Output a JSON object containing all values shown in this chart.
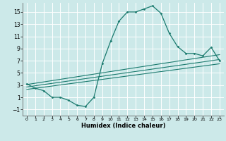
{
  "xlabel": "Humidex (Indice chaleur)",
  "bg_color": "#cce9e9",
  "grid_color": "#ffffff",
  "line_color": "#1a7a6e",
  "xlim": [
    -0.5,
    23.5
  ],
  "ylim": [
    -2.0,
    16.5
  ],
  "xticks": [
    0,
    1,
    2,
    3,
    4,
    5,
    6,
    7,
    8,
    9,
    10,
    11,
    12,
    13,
    14,
    15,
    16,
    17,
    18,
    19,
    20,
    21,
    22,
    23
  ],
  "yticks": [
    -1,
    1,
    3,
    5,
    7,
    9,
    11,
    13,
    15
  ],
  "curve1_x": [
    0,
    1,
    2,
    3,
    4,
    5,
    6,
    7,
    8,
    9,
    10,
    11,
    12,
    13,
    14,
    15,
    16,
    17,
    18,
    19,
    20,
    21,
    22,
    23
  ],
  "curve1_y": [
    3.2,
    2.5,
    2.1,
    1.0,
    1.0,
    0.5,
    -0.3,
    -0.5,
    1.0,
    6.5,
    10.2,
    13.5,
    15.0,
    15.0,
    15.5,
    16.0,
    14.8,
    11.5,
    9.3,
    8.2,
    8.2,
    7.8,
    9.2,
    7.0
  ],
  "line2_x": [
    0,
    23
  ],
  "line2_y": [
    3.1,
    8.0
  ],
  "line3_x": [
    0,
    23
  ],
  "line3_y": [
    2.7,
    7.2
  ],
  "line4_x": [
    0,
    23
  ],
  "line4_y": [
    2.3,
    6.5
  ],
  "xlabel_fontsize": 6.0,
  "tick_fontsize_x": 4.5,
  "tick_fontsize_y": 5.5
}
